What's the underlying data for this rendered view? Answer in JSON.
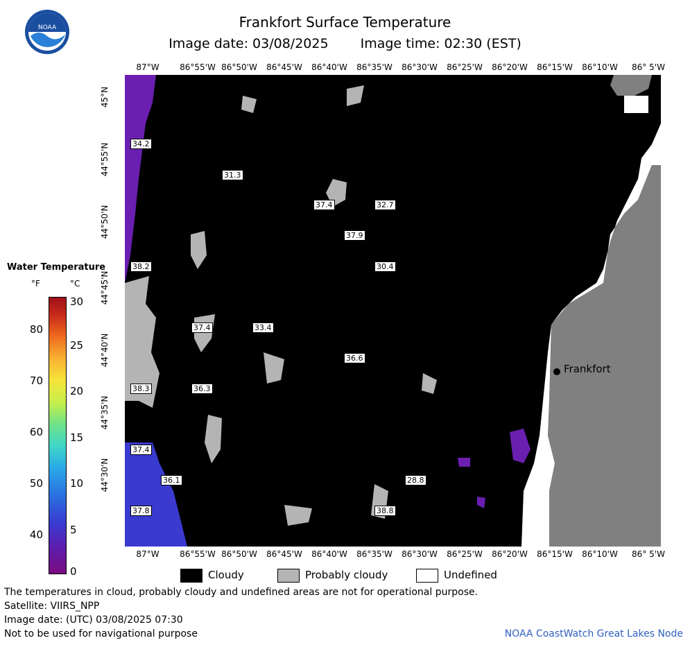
{
  "header": {
    "title": "Frankfort Surface Temperature",
    "image_date": "Image date: 03/08/2025",
    "image_time": "Image time: 02:30 (EST)"
  },
  "logo": {
    "text": "NOAA"
  },
  "map": {
    "lon_labels": [
      "87°W",
      "86°55'W",
      "86°50'W",
      "86°45'W",
      "86°40'W",
      "86°35'W",
      "86°30'W",
      "86°25'W",
      "86°20'W",
      "86°15'W",
      "86°10'W",
      "86° 5'W"
    ],
    "lat_labels": [
      "45°N",
      "44°55'N",
      "44°50'N",
      "44°45'N",
      "44°40'N",
      "44°35'N",
      "44°30'N"
    ],
    "city": "Frankfort",
    "temps": [
      "34.2",
      "31.3",
      "37.4",
      "32.7",
      "37.9",
      "38.2",
      "30.4",
      "37.4",
      "33.4",
      "36.6",
      "38.3",
      "36.3",
      "37.4",
      "36.1",
      "28.8",
      "37.8",
      "38.8"
    ]
  },
  "legend": {
    "title": "Water Temperature",
    "unit_f": "°F",
    "unit_c": "°C",
    "f_ticks": [
      "80",
      "70",
      "60",
      "50",
      "40"
    ],
    "c_ticks": [
      "30",
      "25",
      "20",
      "15",
      "10",
      "5",
      "0"
    ]
  },
  "key": {
    "cloudy": "Cloudy",
    "probably_cloudy": "Probably cloudy",
    "undefined": "Undefined"
  },
  "footer": {
    "line1": "The temperatures in cloud, probably cloudy and undefined areas are not for operational purpose.",
    "line2": "Satellite: VIIRS_NPP",
    "line3": "Image date: (UTC) 03/08/2025  07:30",
    "line4": "Not to be used for navigational purpose",
    "node": "NOAA CoastWatch Great Lakes Node"
  },
  "colors": {
    "land": "#808080",
    "cloudy": "#000000",
    "probably_cloudy": "#b4b4b4",
    "undefined": "#ffffff",
    "node_text": "#3060c0"
  }
}
